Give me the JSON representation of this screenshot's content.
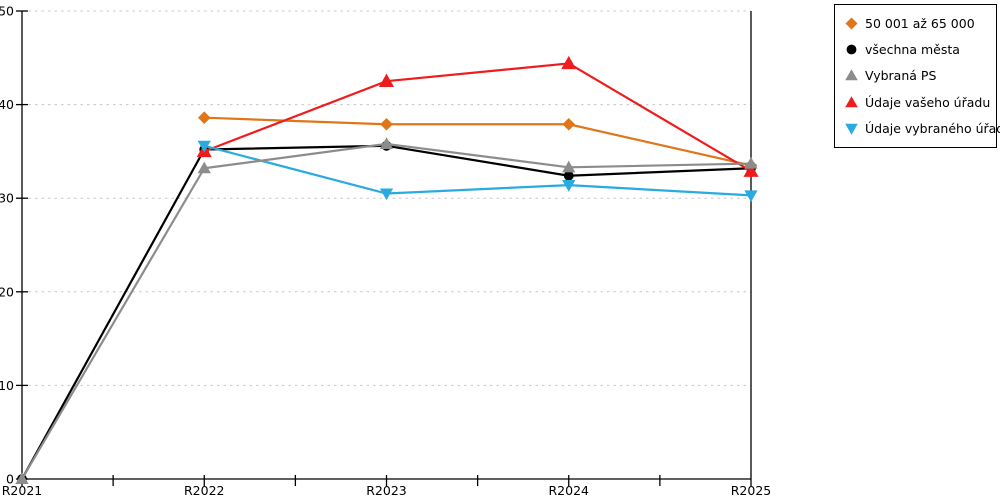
{
  "chart_data": {
    "type": "line",
    "title": "",
    "xlabel": "",
    "ylabel": "",
    "categories": [
      "R2021",
      "R2022",
      "R2023",
      "R2024",
      "R2025"
    ],
    "series": [
      {
        "name": "50 001 až 65 000",
        "marker": "diamond",
        "color": "#E0761A",
        "values": [
          null,
          38.6,
          37.9,
          37.9,
          33.5
        ]
      },
      {
        "name": "všechna města",
        "marker": "circle",
        "color": "#000000",
        "values": [
          0,
          35.2,
          35.6,
          32.4,
          33.2
        ]
      },
      {
        "name": "Vybraná PS",
        "marker": "triangle-up",
        "color": "#8C8C8C",
        "values": [
          0,
          33.2,
          35.8,
          33.3,
          33.7
        ]
      },
      {
        "name": "Údaje vašeho úřadu",
        "marker": "triangle-up",
        "color": "#EE1D1D",
        "values": [
          null,
          35.0,
          42.5,
          44.4,
          32.9
        ]
      },
      {
        "name": "Údaje vybraného úřadu",
        "marker": "triangle-down",
        "color": "#29ABE2",
        "values": [
          null,
          35.6,
          30.5,
          31.4,
          30.3
        ]
      }
    ],
    "draw_order": [
      0,
      1,
      3,
      4,
      2
    ],
    "ylim": [
      0,
      50
    ],
    "yticks": [
      0,
      10,
      20,
      30,
      40,
      50
    ],
    "grid": "horizontal-dashed",
    "legend_position": "top-right"
  },
  "colors": {
    "background": "#FFFFFF",
    "axis": "#000000",
    "gridline": "#C8C8C8",
    "legend_border": "#000000"
  }
}
